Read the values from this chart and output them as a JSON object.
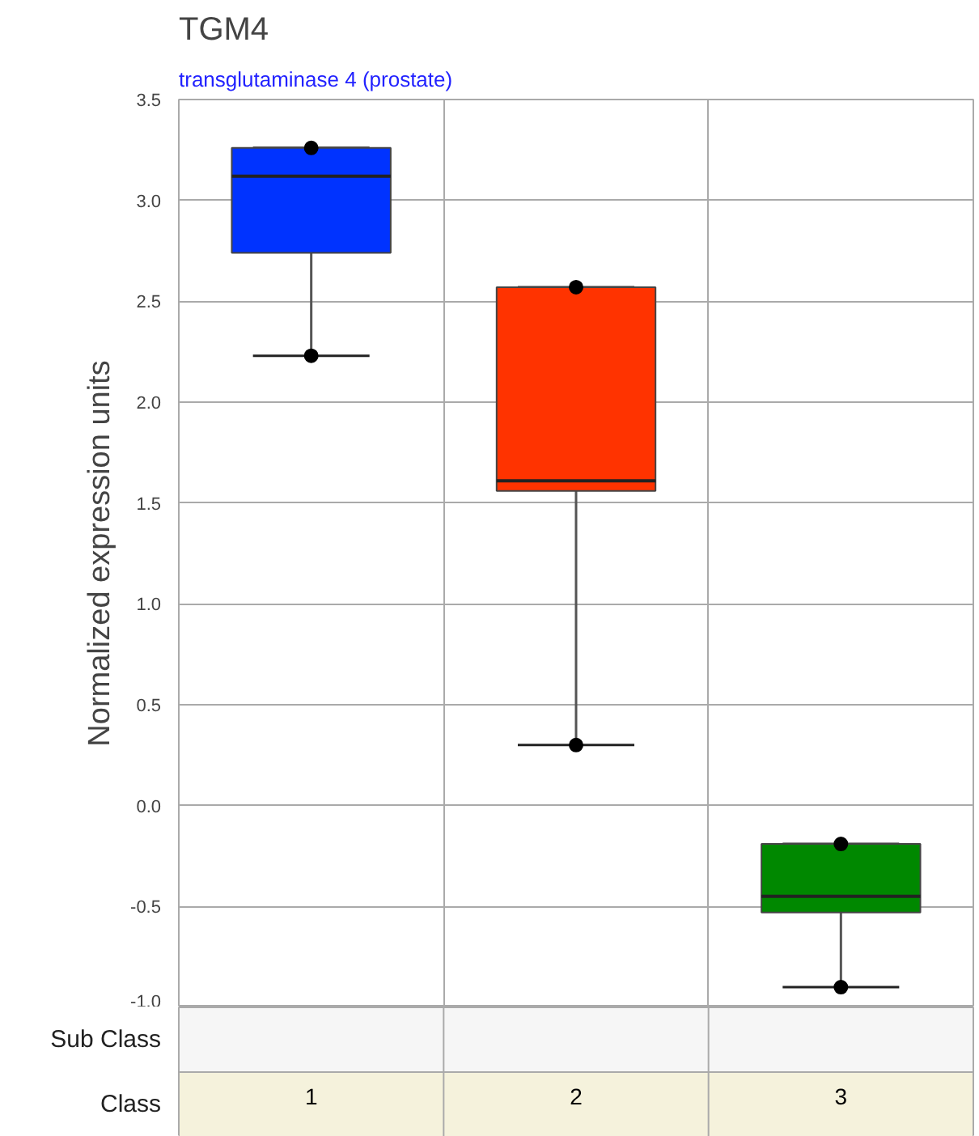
{
  "chart_data": {
    "type": "box",
    "title": "TGM4",
    "subtitle": "transglutaminase 4 (prostate)",
    "ylabel": "Normalized expression units",
    "xlabel": "Class",
    "annotations": [
      "Sub Class"
    ],
    "categories": [
      "1",
      "2",
      "3"
    ],
    "colors": [
      "#0033ff",
      "#ff3300",
      "#008800"
    ],
    "boxes": [
      {
        "low": 2.23,
        "q1": 2.74,
        "median": 3.12,
        "q3": 3.26,
        "high": 3.26
      },
      {
        "low": 0.3,
        "q1": 1.56,
        "median": 1.61,
        "q3": 2.57,
        "high": 2.57
      },
      {
        "low": -0.9,
        "q1": -0.53,
        "median": -0.45,
        "q3": -0.19,
        "high": -0.19
      }
    ],
    "series": [
      {
        "type": "scatter",
        "x": [
          "1",
          "1",
          "2",
          "2",
          "3",
          "3"
        ],
        "values": [
          3.26,
          2.23,
          2.57,
          0.3,
          -0.19,
          -0.9
        ],
        "color": "#000000"
      }
    ],
    "marker": "circle",
    "ylim": [
      -1.0,
      3.5
    ],
    "yticks": [
      {
        "value": 3.5,
        "label": "3.5"
      },
      {
        "value": 3,
        "label": "3.0"
      },
      {
        "value": 2.5,
        "label": "2.5"
      },
      {
        "value": 2,
        "label": "2.0"
      },
      {
        "value": 1.5,
        "label": "1.5"
      },
      {
        "value": 1,
        "label": "1.0"
      },
      {
        "value": 0.5,
        "label": "0.5"
      },
      {
        "value": 0,
        "label": "0.0"
      },
      {
        "value": -0.5,
        "label": "-0.5"
      },
      {
        "value": -1,
        "label": "-1.0"
      }
    ],
    "grid": true
  }
}
